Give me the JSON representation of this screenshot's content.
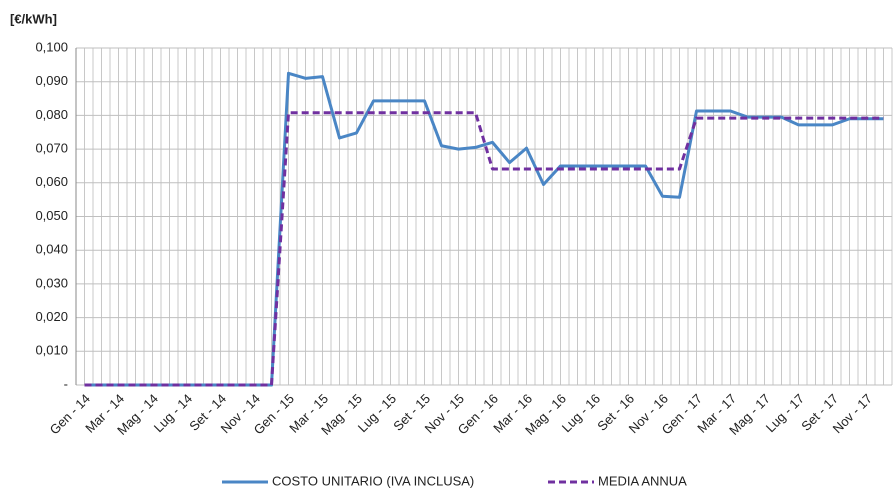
{
  "chart_data": {
    "type": "line",
    "y_label": "[€/kWh]",
    "categories": [
      "Gen - 14",
      null,
      "Mar - 14",
      null,
      "Mag - 14",
      null,
      "Lug - 14",
      null,
      "Set - 14",
      null,
      "Nov - 14",
      null,
      "Gen - 15",
      null,
      "Mar - 15",
      null,
      "Mag - 15",
      null,
      "Lug - 15",
      null,
      "Set - 15",
      null,
      "Nov - 15",
      null,
      "Gen - 16",
      null,
      "Mar - 16",
      null,
      "Mag - 16",
      null,
      "Lug - 16",
      null,
      "Set - 16",
      null,
      "Nov - 16",
      null,
      "Gen - 17",
      null,
      "Mar - 17",
      null,
      "Mag - 17",
      null,
      "Lug - 17",
      null,
      "Set - 17",
      null,
      "Nov - 17",
      null
    ],
    "series": [
      {
        "name": "COSTO UNITARIO (IVA INCLUSA)",
        "color": "#4a86c5",
        "dashed": false,
        "values": [
          0,
          0,
          0,
          0,
          0,
          0,
          0,
          0,
          0,
          0,
          0,
          0,
          0.0925,
          0.091,
          0.0915,
          0.0733,
          0.0748,
          0.0843,
          0.0843,
          0.0843,
          0.0843,
          0.071,
          0.07,
          0.0705,
          0.072,
          0.066,
          0.0703,
          0.0595,
          0.065,
          0.065,
          0.065,
          0.065,
          0.065,
          0.065,
          0.056,
          0.0557,
          0.0813,
          0.0813,
          0.0813,
          0.0795,
          0.0795,
          0.0795,
          0.0772,
          0.0772,
          0.0772,
          0.079,
          0.079,
          0.079
        ]
      },
      {
        "name": "MEDIA ANNUA",
        "color": "#7030a0",
        "dashed": true,
        "values": [
          0,
          0,
          0,
          0,
          0,
          0,
          0,
          0,
          0,
          0,
          0,
          0,
          0.0808,
          0.0808,
          0.0808,
          0.0808,
          0.0808,
          0.0808,
          0.0808,
          0.0808,
          0.0808,
          0.0808,
          0.0808,
          0.0808,
          0.0641,
          0.0641,
          0.0641,
          0.0641,
          0.0641,
          0.0641,
          0.0641,
          0.0641,
          0.0641,
          0.0641,
          0.0641,
          0.0641,
          0.0792,
          0.0792,
          0.0792,
          0.0792,
          0.0792,
          0.0792,
          0.0792,
          0.0792,
          0.0792,
          0.0792,
          0.0792,
          0.0792
        ]
      }
    ],
    "ylim": [
      0,
      0.1
    ],
    "yticks": [
      {
        "value": 0,
        "label": "-"
      },
      {
        "value": 0.01,
        "label": "0,010"
      },
      {
        "value": 0.02,
        "label": "0,020"
      },
      {
        "value": 0.03,
        "label": "0,030"
      },
      {
        "value": 0.04,
        "label": "0,040"
      },
      {
        "value": 0.05,
        "label": "0,050"
      },
      {
        "value": 0.06,
        "label": "0,060"
      },
      {
        "value": 0.07,
        "label": "0,070"
      },
      {
        "value": 0.08,
        "label": "0,080"
      },
      {
        "value": 0.09,
        "label": "0,090"
      },
      {
        "value": 0.1,
        "label": "0,100"
      }
    ],
    "grid": true,
    "legend": "bottom"
  }
}
